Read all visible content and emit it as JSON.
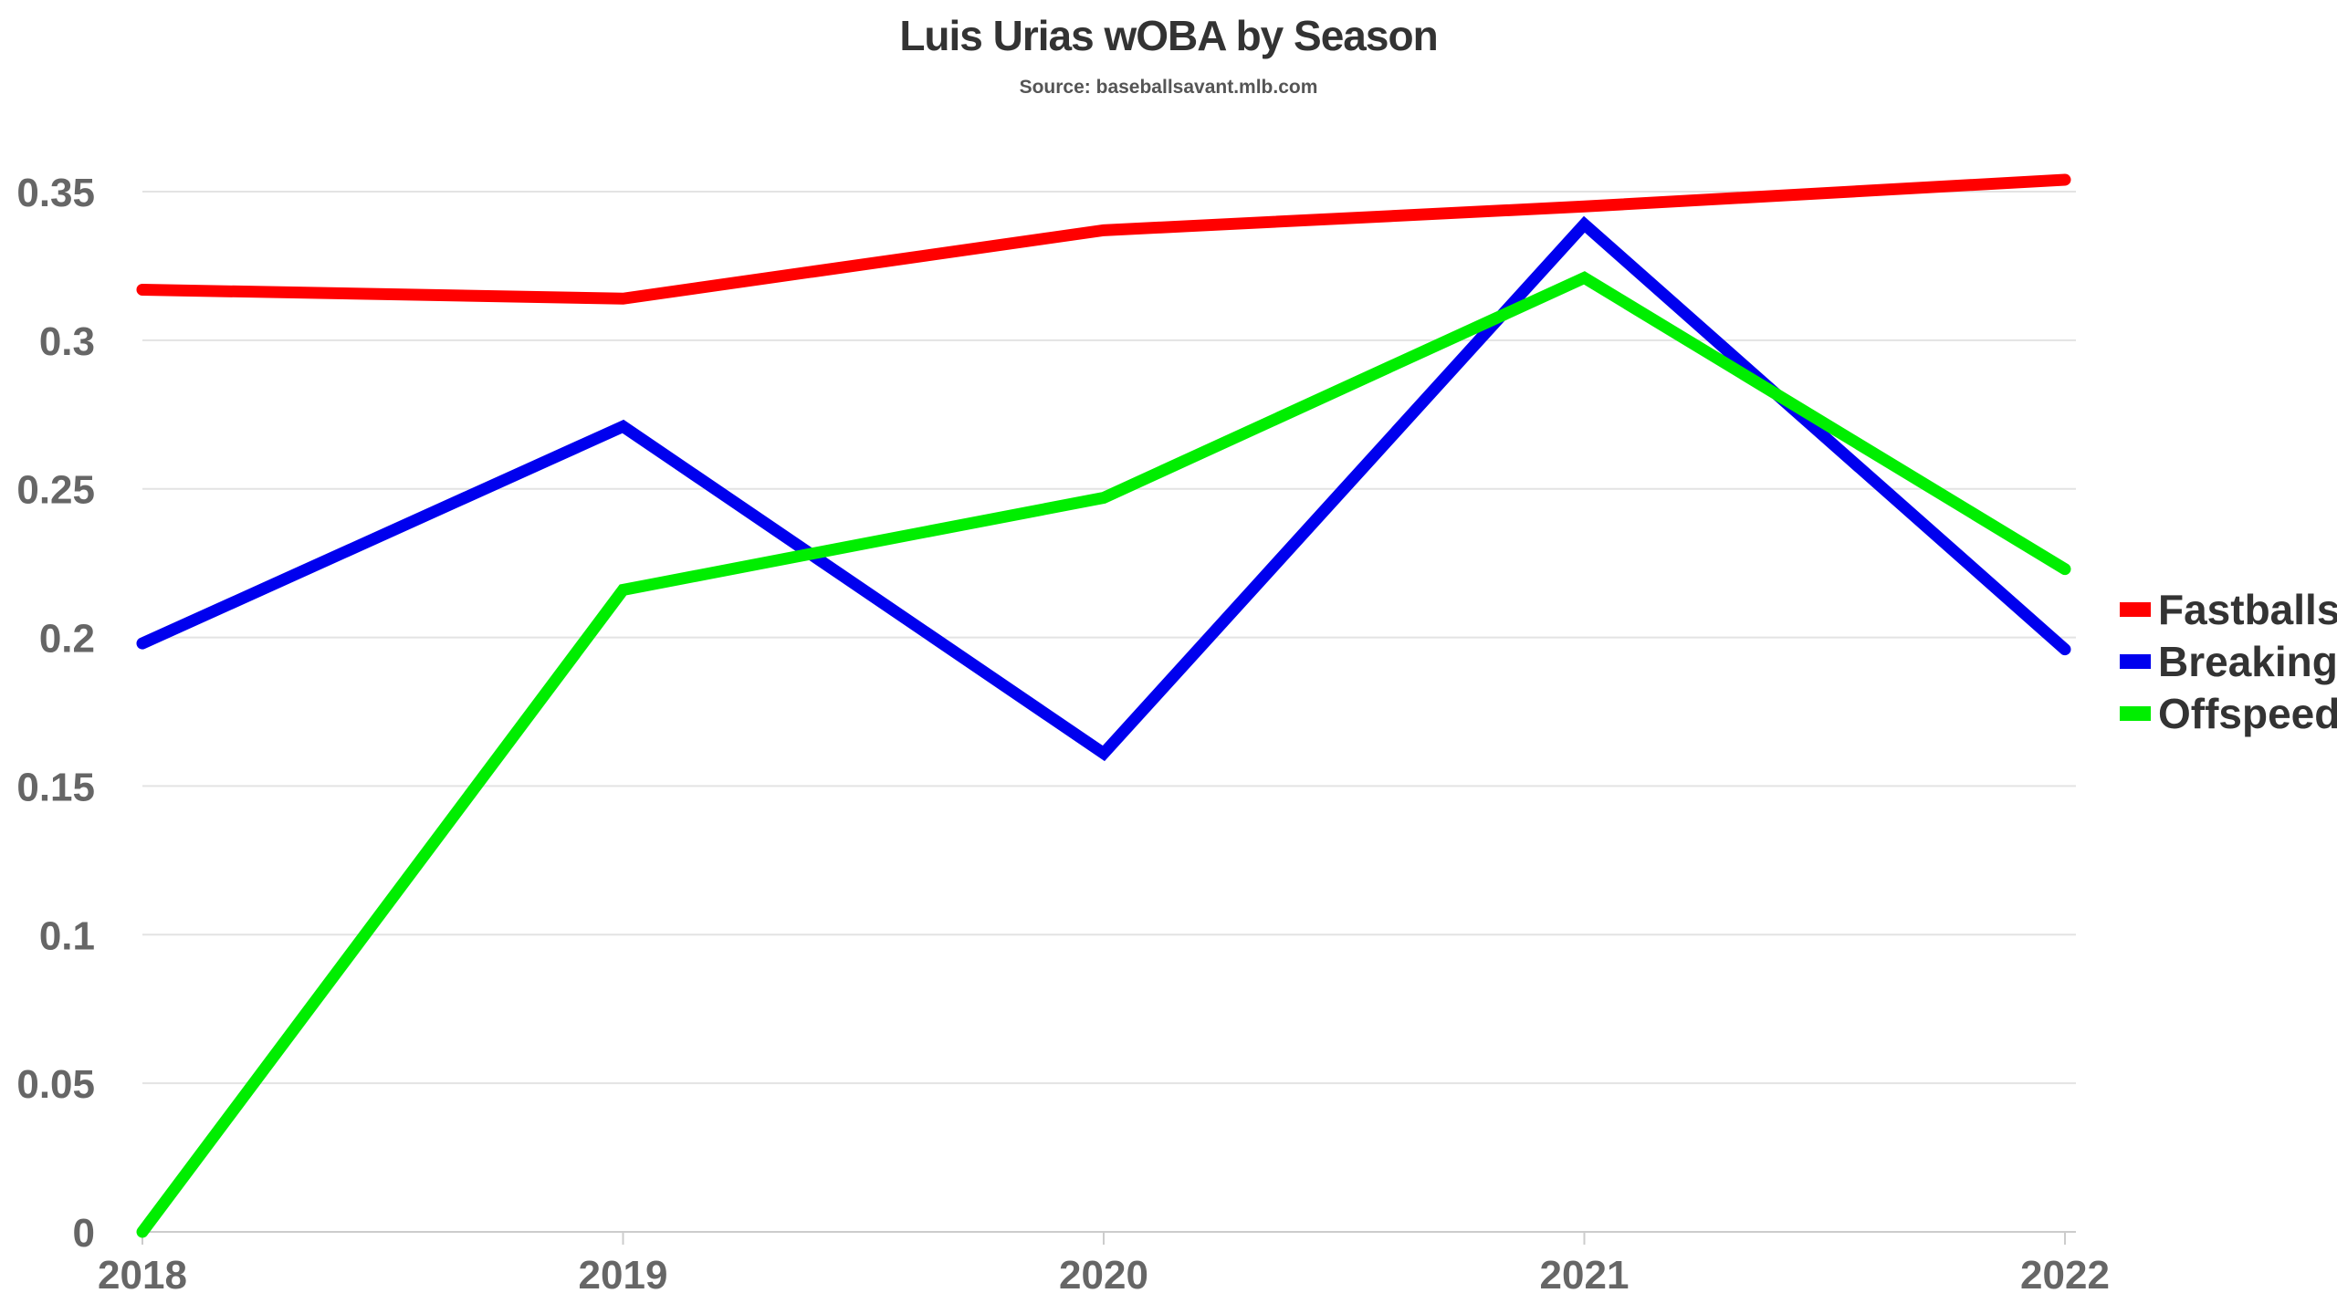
{
  "chart_data": {
    "type": "line",
    "title": "Luis Urias wOBA by Season",
    "subtitle": "Source: baseballsavant.mlb.com",
    "xlabel": "",
    "ylabel": "",
    "categories": [
      "2018",
      "2019",
      "2020",
      "2021",
      "2022"
    ],
    "y_ticks": [
      "0",
      "0.05",
      "0.1",
      "0.15",
      "0.2",
      "0.25",
      "0.3",
      "0.35"
    ],
    "ylim": [
      0,
      0.35
    ],
    "grid": true,
    "legend_position": "right",
    "series": [
      {
        "name": "Fastballs",
        "color": "#ff0000",
        "values": [
          0.317,
          0.314,
          0.337,
          0.345,
          0.354
        ]
      },
      {
        "name": "Breaking",
        "color": "#0000ee",
        "values": [
          0.198,
          0.271,
          0.161,
          0.339,
          0.196
        ]
      },
      {
        "name": "Offspeed",
        "color": "#00ee00",
        "values": [
          0.0,
          0.216,
          0.247,
          0.321,
          0.223
        ]
      }
    ]
  }
}
